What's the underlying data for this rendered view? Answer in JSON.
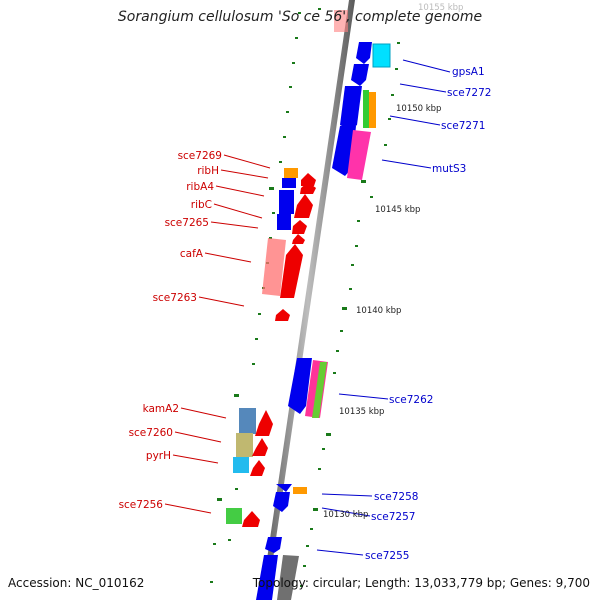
{
  "title": "Sorangium cellulosum 'So ce 56', complete genome",
  "accession": "Accession: NC_010162",
  "topology": "Topology: circular; Length: 13,033,779 bp; Genes: 9,700",
  "colors": {
    "forward_label": "#0000cc",
    "reverse_label": "#cc0000",
    "backbone": "#808080",
    "tick": "#1a7a1a"
  },
  "ticks": [
    "10155 kbp",
    "10150 kbp",
    "10145 kbp",
    "10140 kbp",
    "10135 kbp",
    "10130 kbp"
  ],
  "forward_genes": [
    "gpsA1",
    "sce7272",
    "sce7271",
    "mutS3",
    "sce7262",
    "sce7258",
    "sce7257",
    "sce7255"
  ],
  "reverse_genes": [
    "sce7269",
    "ribH",
    "ribA4",
    "ribC",
    "sce7265",
    "cafA",
    "sce7263",
    "kamA2",
    "sce7260",
    "pyrH",
    "sce7256"
  ]
}
